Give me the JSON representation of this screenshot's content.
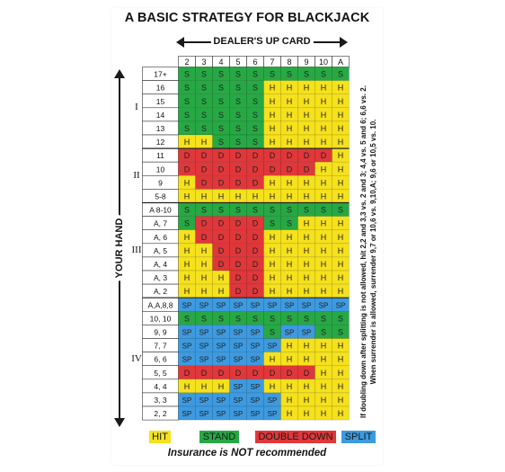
{
  "card": {
    "title": "A BASIC STRATEGY FOR BLACKJACK",
    "dealer_label": "DEALER'S UP CARD",
    "your_hand_label": "YOUR HAND",
    "insurance_note": "Insurance is NOT recommended"
  },
  "dealer_cards": [
    "2",
    "3",
    "4",
    "5",
    "6",
    "7",
    "8",
    "9",
    "10",
    "A"
  ],
  "sections": [
    {
      "label": "I",
      "rows": [
        "17+",
        "16",
        "15",
        "14",
        "13",
        "12"
      ]
    },
    {
      "label": "II",
      "rows": [
        "11",
        "10",
        "9",
        "5-8"
      ]
    },
    {
      "label": "III",
      "rows": [
        "A 8-10",
        "A, 7",
        "A, 6",
        "A, 5",
        "A, 4",
        "A, 3",
        "A, 2"
      ]
    },
    {
      "label": "IV",
      "rows": [
        "A,A,8,8",
        "10, 10",
        "9, 9",
        "7, 7",
        "6, 6",
        "5, 5",
        "4, 4",
        "3, 3",
        "2, 2"
      ]
    }
  ],
  "strategy": [
    [
      "S",
      "S",
      "S",
      "S",
      "S",
      "S",
      "S",
      "S",
      "S",
      "S"
    ],
    [
      "S",
      "S",
      "S",
      "S",
      "S",
      "H",
      "H",
      "H",
      "H",
      "H"
    ],
    [
      "S",
      "S",
      "S",
      "S",
      "S",
      "H",
      "H",
      "H",
      "H",
      "H"
    ],
    [
      "S",
      "S",
      "S",
      "S",
      "S",
      "H",
      "H",
      "H",
      "H",
      "H"
    ],
    [
      "S",
      "S",
      "S",
      "S",
      "S",
      "H",
      "H",
      "H",
      "H",
      "H"
    ],
    [
      "H",
      "H",
      "S",
      "S",
      "S",
      "H",
      "H",
      "H",
      "H",
      "H"
    ],
    [
      "D",
      "D",
      "D",
      "D",
      "D",
      "D",
      "D",
      "D",
      "D",
      "H"
    ],
    [
      "D",
      "D",
      "D",
      "D",
      "D",
      "D",
      "D",
      "D",
      "H",
      "H"
    ],
    [
      "H",
      "D",
      "D",
      "D",
      "D",
      "H",
      "H",
      "H",
      "H",
      "H"
    ],
    [
      "H",
      "H",
      "H",
      "H",
      "H",
      "H",
      "H",
      "H",
      "H",
      "H"
    ],
    [
      "S",
      "S",
      "S",
      "S",
      "S",
      "S",
      "S",
      "S",
      "S",
      "S"
    ],
    [
      "S",
      "D",
      "D",
      "D",
      "D",
      "S",
      "S",
      "H",
      "H",
      "H"
    ],
    [
      "H",
      "D",
      "D",
      "D",
      "D",
      "H",
      "H",
      "H",
      "H",
      "H"
    ],
    [
      "H",
      "H",
      "D",
      "D",
      "D",
      "H",
      "H",
      "H",
      "H",
      "H"
    ],
    [
      "H",
      "H",
      "D",
      "D",
      "D",
      "H",
      "H",
      "H",
      "H",
      "H"
    ],
    [
      "H",
      "H",
      "H",
      "D",
      "D",
      "H",
      "H",
      "H",
      "H",
      "H"
    ],
    [
      "H",
      "H",
      "H",
      "D",
      "D",
      "H",
      "H",
      "H",
      "H",
      "H"
    ],
    [
      "SP",
      "SP",
      "SP",
      "SP",
      "SP",
      "SP",
      "SP",
      "SP",
      "SP",
      "SP"
    ],
    [
      "S",
      "S",
      "S",
      "S",
      "S",
      "S",
      "S",
      "S",
      "S",
      "S"
    ],
    [
      "SP",
      "SP",
      "SP",
      "SP",
      "SP",
      "S",
      "SP",
      "SP",
      "S",
      "S"
    ],
    [
      "SP",
      "SP",
      "SP",
      "SP",
      "SP",
      "SP",
      "H",
      "H",
      "H",
      "H"
    ],
    [
      "SP",
      "SP",
      "SP",
      "SP",
      "SP",
      "H",
      "H",
      "H",
      "H",
      "H"
    ],
    [
      "D",
      "D",
      "D",
      "D",
      "D",
      "D",
      "D",
      "D",
      "H",
      "H"
    ],
    [
      "H",
      "H",
      "H",
      "SP",
      "SP",
      "H",
      "H",
      "H",
      "H",
      "H"
    ],
    [
      "SP",
      "SP",
      "SP",
      "SP",
      "SP",
      "SP",
      "H",
      "H",
      "H",
      "H"
    ],
    [
      "SP",
      "SP",
      "SP",
      "SP",
      "SP",
      "SP",
      "H",
      "H",
      "H",
      "H"
    ]
  ],
  "actions": {
    "H": {
      "color": "#f5e11c"
    },
    "S": {
      "color": "#27a844"
    },
    "D": {
      "color": "#e0373a"
    },
    "SP": {
      "color": "#3d9ae0"
    }
  },
  "legend": [
    {
      "code": "H",
      "label": "HIT",
      "color": "#f5e11c"
    },
    {
      "code": "S",
      "label": "STAND",
      "color": "#27a844"
    },
    {
      "code": "D",
      "label": "DOUBLE DOWN",
      "color": "#e0373a"
    },
    {
      "code": "SP",
      "label": "SPLIT",
      "color": "#3d9ae0"
    }
  ],
  "footnote": {
    "line1": "If doubling down after splitting is not allowed, hit 2,2 and 3,3 vs. 2 and 3; 4,4 vs. 5 and 6; 6,6 vs. 2.",
    "line2": "When surrender is allowed, surrender 9,7 or 10,6 vs. 9,10,A; 9,6 or 10,5 vs. 10."
  }
}
